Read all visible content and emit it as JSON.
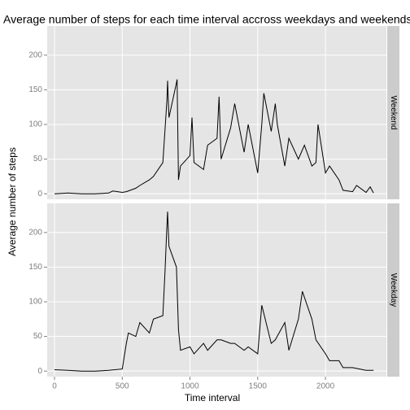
{
  "chart_data": {
    "type": "line",
    "title": "Average number of steps for each time interval accross weekdays and weekends",
    "x_label": "Time interval",
    "y_label": "Average number of steps",
    "xlim": [
      -54,
      2450
    ],
    "xticks": [
      0,
      500,
      1000,
      1500,
      2000
    ],
    "ylim": [
      -8,
      242
    ],
    "yticks": [
      0,
      50,
      100,
      150,
      200
    ],
    "grid": true,
    "series": [
      {
        "name": "Weekend",
        "color": "#000000",
        "x": [
          0,
          100,
          200,
          300,
          400,
          430,
          500,
          530,
          600,
          630,
          700,
          730,
          800,
          815,
          830,
          835,
          845,
          900,
          905,
          915,
          930,
          1000,
          1015,
          1030,
          1100,
          1130,
          1200,
          1215,
          1230,
          1300,
          1330,
          1400,
          1430,
          1500,
          1530,
          1545,
          1600,
          1630,
          1645,
          1700,
          1730,
          1800,
          1845,
          1900,
          1930,
          1945,
          2000,
          2030,
          2100,
          2130,
          2200,
          2230,
          2300,
          2330,
          2355
        ],
        "values": [
          0,
          1,
          0,
          0,
          1,
          4,
          2,
          3,
          8,
          12,
          20,
          25,
          45,
          90,
          135,
          163,
          110,
          160,
          165,
          20,
          40,
          55,
          110,
          45,
          35,
          70,
          80,
          140,
          50,
          95,
          130,
          60,
          100,
          30,
          100,
          145,
          90,
          130,
          100,
          40,
          80,
          50,
          70,
          40,
          45,
          100,
          30,
          40,
          20,
          5,
          3,
          12,
          2,
          10,
          1
        ]
      },
      {
        "name": "Weekday",
        "color": "#000000",
        "x": [
          0,
          100,
          200,
          300,
          400,
          500,
          530,
          545,
          600,
          630,
          700,
          730,
          800,
          815,
          830,
          835,
          845,
          900,
          915,
          930,
          1000,
          1030,
          1100,
          1130,
          1200,
          1230,
          1300,
          1330,
          1400,
          1430,
          1500,
          1530,
          1600,
          1630,
          1700,
          1730,
          1800,
          1830,
          1900,
          1930,
          2000,
          2030,
          2100,
          2130,
          2200,
          2300,
          2355
        ],
        "values": [
          2,
          1,
          0,
          0,
          1,
          3,
          40,
          55,
          50,
          70,
          55,
          75,
          80,
          140,
          210,
          230,
          180,
          150,
          60,
          30,
          35,
          25,
          40,
          30,
          45,
          45,
          40,
          40,
          30,
          35,
          25,
          95,
          40,
          45,
          70,
          30,
          75,
          115,
          75,
          45,
          25,
          15,
          15,
          5,
          5,
          1,
          1
        ]
      }
    ]
  }
}
